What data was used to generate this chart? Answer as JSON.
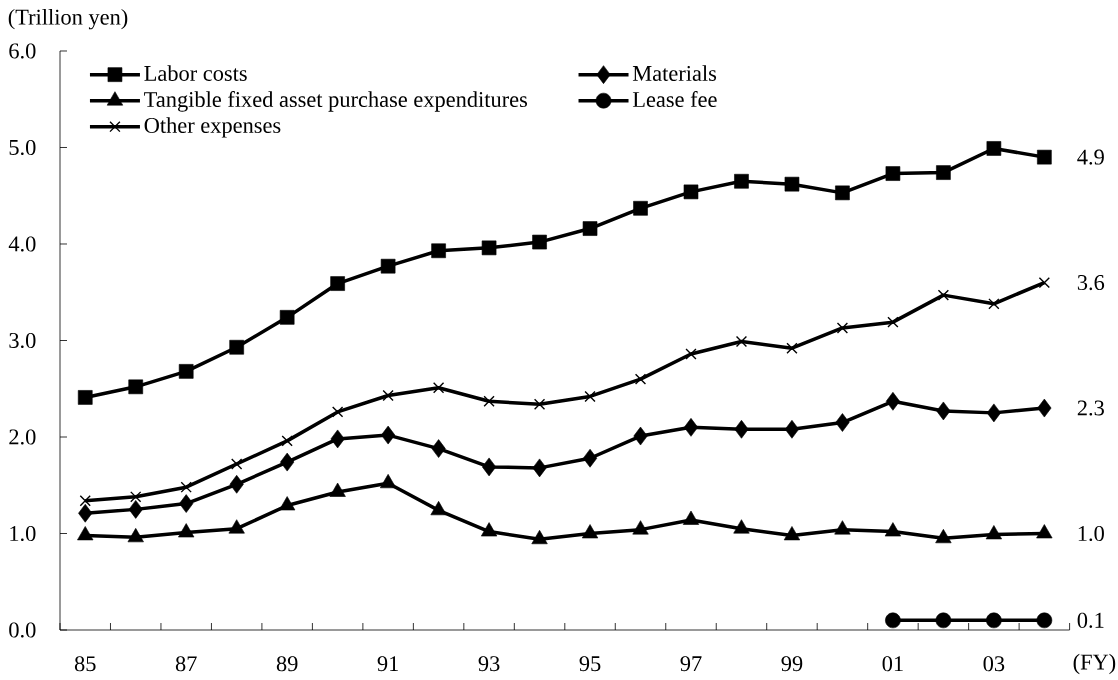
{
  "chart_data": {
    "type": "line",
    "ylabel": "(Trillion yen)",
    "xlabel": "(FY)",
    "categories": [
      "85",
      null,
      "87",
      null,
      "89",
      null,
      "91",
      null,
      "93",
      null,
      "95",
      null,
      "97",
      null,
      "99",
      null,
      "01",
      null,
      "03",
      null
    ],
    "ylim": [
      0,
      6
    ],
    "yticks": [
      {
        "value": 0,
        "label": "0.0"
      },
      {
        "value": 1,
        "label": "1.0"
      },
      {
        "value": 2,
        "label": "2.0"
      },
      {
        "value": 3,
        "label": "3.0"
      },
      {
        "value": 4,
        "label": "4.0"
      },
      {
        "value": 5,
        "label": "5.0"
      },
      {
        "value": 6,
        "label": "6.0"
      }
    ],
    "legend": "top left",
    "series": [
      {
        "name": "Labor costs",
        "color": "#000000",
        "marker": "square",
        "values": [
          2.41,
          2.52,
          2.68,
          2.93,
          3.24,
          3.59,
          3.77,
          3.93,
          3.96,
          4.02,
          4.16,
          4.37,
          4.54,
          4.65,
          4.62,
          4.53,
          4.73,
          4.74,
          4.99,
          4.9
        ],
        "value_labels": [
          null,
          null,
          null,
          null,
          null,
          null,
          null,
          null,
          null,
          null,
          null,
          null,
          null,
          null,
          null,
          null,
          null,
          null,
          null,
          "4.9"
        ]
      },
      {
        "name": "Materials",
        "color": "#000000",
        "marker": "diamond",
        "values": [
          1.21,
          1.25,
          1.31,
          1.51,
          1.74,
          1.98,
          2.02,
          1.88,
          1.69,
          1.68,
          1.78,
          2.01,
          2.1,
          2.08,
          2.08,
          2.15,
          2.37,
          2.27,
          2.25,
          2.3
        ],
        "value_labels": [
          null,
          null,
          null,
          null,
          null,
          null,
          null,
          null,
          null,
          null,
          null,
          null,
          null,
          null,
          null,
          null,
          null,
          null,
          null,
          "2.3"
        ]
      },
      {
        "name": "Tangible fixed asset purchase expenditures",
        "color": "#000000",
        "marker": "triangle",
        "values": [
          0.98,
          0.96,
          1.01,
          1.05,
          1.29,
          1.43,
          1.52,
          1.24,
          1.02,
          0.94,
          1.0,
          1.04,
          1.14,
          1.05,
          0.98,
          1.04,
          1.02,
          0.95,
          0.99,
          1.0
        ],
        "value_labels": [
          null,
          null,
          null,
          null,
          null,
          null,
          null,
          null,
          null,
          null,
          null,
          null,
          null,
          null,
          null,
          null,
          null,
          null,
          null,
          "1.0"
        ]
      },
      {
        "name": "Lease fee",
        "color": "#000000",
        "marker": "circle",
        "values": [
          null,
          null,
          null,
          null,
          null,
          null,
          null,
          null,
          null,
          null,
          null,
          null,
          null,
          null,
          null,
          null,
          0.1,
          0.1,
          0.1,
          0.1
        ],
        "value_labels": [
          null,
          null,
          null,
          null,
          null,
          null,
          null,
          null,
          null,
          null,
          null,
          null,
          null,
          null,
          null,
          null,
          null,
          null,
          null,
          "0.1"
        ]
      },
      {
        "name": "Other expenses",
        "color": "#000000",
        "marker": "cross",
        "values": [
          1.34,
          1.38,
          1.48,
          1.72,
          1.96,
          2.26,
          2.43,
          2.51,
          2.37,
          2.34,
          2.42,
          2.6,
          2.86,
          2.99,
          2.92,
          3.13,
          3.19,
          3.47,
          3.38,
          3.6
        ],
        "value_labels": [
          null,
          null,
          null,
          null,
          null,
          null,
          null,
          null,
          null,
          null,
          null,
          null,
          null,
          null,
          null,
          null,
          null,
          null,
          null,
          "3.6"
        ]
      }
    ]
  }
}
